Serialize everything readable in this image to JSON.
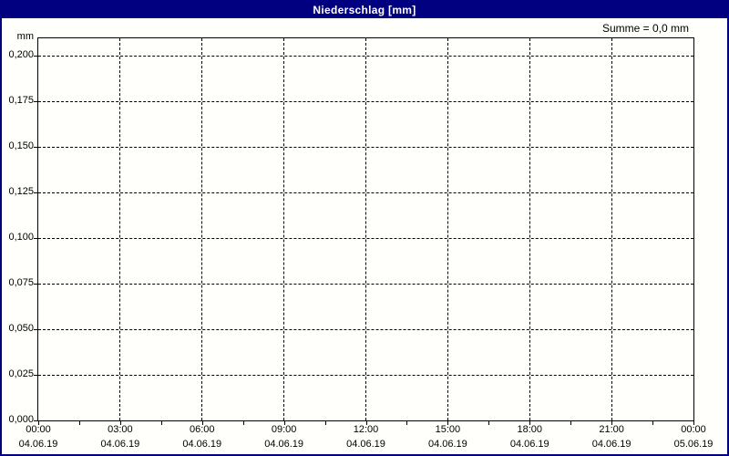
{
  "window": {
    "title": "Niederschlag [mm]"
  },
  "header": {
    "summary": "Summe = 0,0 mm"
  },
  "colors": {
    "titlebar": "#000080",
    "title_text": "#ffffff",
    "background": "#fffffc",
    "grid": "#000000",
    "text": "#000000"
  },
  "chart_data": {
    "type": "bar",
    "title": "Niederschlag [mm]",
    "summary_label": "Summe = 0,0 mm",
    "sum_value_mm": 0.0,
    "ylabel": "mm",
    "ylim": [
      0.0,
      0.2
    ],
    "y_tick_step": 0.025,
    "y_tick_labels": [
      "0,200",
      "0,175",
      "0,150",
      "0,125",
      "0,100",
      "0,075",
      "0,050",
      "0,025",
      "0,000"
    ],
    "y_tick_values": [
      0.2,
      0.175,
      0.15,
      0.125,
      0.1,
      0.075,
      0.05,
      0.025,
      0.0
    ],
    "x_axis": {
      "major_ticks": [
        {
          "time": "00:00",
          "date": "04.06.19"
        },
        {
          "time": "03:00",
          "date": "04.06.19"
        },
        {
          "time": "06:00",
          "date": "04.06.19"
        },
        {
          "time": "09:00",
          "date": "04.06.19"
        },
        {
          "time": "12:00",
          "date": "04.06.19"
        },
        {
          "time": "15:00",
          "date": "04.06.19"
        },
        {
          "time": "18:00",
          "date": "04.06.19"
        },
        {
          "time": "21:00",
          "date": "04.06.19"
        },
        {
          "time": "00:00",
          "date": "05.06.19"
        }
      ],
      "minor_ticks_between_major": 1
    },
    "grid": {
      "style": "dashed",
      "color": "#000000"
    },
    "legend": "none",
    "series": [
      {
        "name": "Niederschlag",
        "unit": "mm",
        "values": []
      }
    ]
  }
}
